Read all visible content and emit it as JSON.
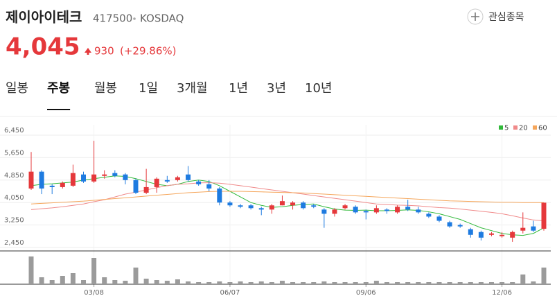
{
  "header": {
    "title": "제이아이테크",
    "code": "417500",
    "market": "KOSDAQ",
    "price": "4,045",
    "change": "930",
    "change_pct": "(+29.86%)",
    "watch_button": "관심종목"
  },
  "tabs": {
    "items": [
      "일봉",
      "주봉",
      "월봉",
      "1일",
      "3개월",
      "1년",
      "3년",
      "10년"
    ],
    "active": 1
  },
  "chart_data": {
    "type": "candlestick",
    "categories": [
      null,
      null,
      null,
      null,
      null,
      null,
      "03/08",
      null,
      null,
      null,
      null,
      null,
      null,
      null,
      null,
      null,
      null,
      null,
      null,
      "06/07",
      null,
      null,
      null,
      null,
      null,
      null,
      null,
      null,
      null,
      null,
      null,
      null,
      "09/06",
      null,
      null,
      null,
      null,
      null,
      null,
      null,
      null,
      null,
      null,
      null,
      null,
      "12/06",
      null,
      null,
      null,
      null
    ],
    "open": [
      4550,
      5150,
      4650,
      4600,
      4650,
      5050,
      4800,
      5000,
      5100,
      5050,
      4850,
      4400,
      4600,
      4850,
      4850,
      5050,
      4800,
      4700,
      4550,
      4050,
      3950,
      3950,
      3850,
      3800,
      3950,
      3950,
      4050,
      3950,
      3800,
      3650,
      3850,
      3900,
      3750,
      3700,
      3800,
      3700,
      3900,
      3800,
      3650,
      3550,
      3350,
      3250,
      3100,
      3000,
      2900,
      2850,
      2800,
      3050,
      3200,
      3115
    ],
    "high": [
      5850,
      5200,
      4700,
      4800,
      5400,
      5150,
      6250,
      5200,
      5200,
      5100,
      4900,
      5250,
      4950,
      5000,
      5000,
      5350,
      4850,
      4850,
      4600,
      4100,
      4000,
      4000,
      3900,
      4000,
      4300,
      4100,
      4100,
      4000,
      3850,
      3850,
      4000,
      3950,
      3800,
      3950,
      3850,
      3950,
      4150,
      3900,
      3700,
      3600,
      3400,
      3300,
      3150,
      3050,
      3000,
      3000,
      3050,
      3700,
      3400,
      4045
    ],
    "low": [
      4500,
      4350,
      4350,
      4550,
      4600,
      4750,
      4750,
      4900,
      4950,
      4700,
      4350,
      4350,
      4400,
      4750,
      4800,
      4800,
      4650,
      4450,
      3950,
      3900,
      3850,
      3800,
      3600,
      3650,
      3950,
      3800,
      3800,
      3850,
      3150,
      3550,
      3800,
      3650,
      3450,
      3650,
      3650,
      3650,
      3750,
      3650,
      3500,
      3350,
      3150,
      3150,
      2800,
      2700,
      2850,
      2800,
      2650,
      2950,
      3000,
      3050
    ],
    "close": [
      5150,
      4550,
      4600,
      4750,
      5100,
      4800,
      5050,
      5050,
      5000,
      4850,
      4400,
      4600,
      4900,
      4800,
      4950,
      4850,
      4700,
      4550,
      4050,
      3950,
      3900,
      3850,
      3800,
      3950,
      4100,
      4050,
      3850,
      3900,
      3650,
      3800,
      3950,
      3700,
      3700,
      3850,
      3750,
      3900,
      3800,
      3700,
      3550,
      3400,
      3200,
      3200,
      2900,
      2800,
      2950,
      2900,
      3000,
      3150,
      3050,
      4045
    ],
    "up_color": "#e5383b",
    "down_color": "#1e7be0",
    "series": [
      {
        "name": "5",
        "color": "#31b93a",
        "values": [
          4650,
          4700,
          4720,
          4750,
          4780,
          4850,
          4900,
          4950,
          5000,
          4980,
          4900,
          4800,
          4700,
          4650,
          4700,
          4800,
          4850,
          4800,
          4650,
          4450,
          4250,
          4050,
          3950,
          3880,
          3900,
          3950,
          3980,
          4000,
          3900,
          3820,
          3780,
          3770,
          3780,
          3760,
          3760,
          3770,
          3790,
          3770,
          3720,
          3650,
          3550,
          3450,
          3300,
          3150,
          3050,
          2950,
          2900,
          2880,
          2950,
          3150
        ]
      },
      {
        "name": "20",
        "color": "#f08a8a",
        "values": [
          3800,
          3830,
          3860,
          3900,
          3950,
          4000,
          4080,
          4150,
          4250,
          4350,
          4420,
          4500,
          4580,
          4650,
          4700,
          4720,
          4750,
          4760,
          4740,
          4700,
          4650,
          4600,
          4550,
          4500,
          4450,
          4400,
          4350,
          4300,
          4250,
          4200,
          4150,
          4100,
          4050,
          4000,
          3980,
          3960,
          3950,
          3930,
          3900,
          3870,
          3850,
          3820,
          3780,
          3740,
          3700,
          3650,
          3580,
          3500,
          3430,
          3400
        ]
      },
      {
        "name": "60",
        "color": "#f5a65b",
        "values": [
          4000,
          4020,
          4040,
          4060,
          4080,
          4100,
          4130,
          4160,
          4190,
          4220,
          4250,
          4280,
          4310,
          4340,
          4370,
          4400,
          4420,
          4440,
          4450,
          4450,
          4450,
          4440,
          4430,
          4420,
          4410,
          4400,
          4390,
          4370,
          4350,
          4330,
          4310,
          4290,
          4270,
          4250,
          4230,
          4210,
          4190,
          4170,
          4150,
          4130,
          4110,
          4100,
          4090,
          4080,
          4070,
          4060,
          4060,
          4050,
          4050,
          4050
        ]
      }
    ],
    "volume": [
      40,
      10,
      6,
      12,
      16,
      6,
      38,
      10,
      6,
      5,
      24,
      8,
      6,
      5,
      7,
      4,
      3,
      3,
      4,
      3,
      4,
      3,
      4,
      3,
      5,
      3,
      3,
      3,
      4,
      3,
      3,
      3,
      3,
      5,
      3,
      3,
      3,
      3,
      3,
      3,
      3,
      3,
      3,
      3,
      3,
      3,
      3,
      14,
      4,
      24
    ],
    "volume_color": "#9b9b9b",
    "volume_ylim": [
      0,
      42
    ],
    "ylim": [
      2450,
      6450
    ],
    "yticks": [
      {
        "value": 2450,
        "label": "2,450"
      },
      {
        "value": 3250,
        "label": "3,250"
      },
      {
        "value": 4050,
        "label": "4,050"
      },
      {
        "value": 4850,
        "label": "4,850"
      },
      {
        "value": 5650,
        "label": "5,650"
      },
      {
        "value": 6450,
        "label": "6,450"
      }
    ],
    "grid": true
  }
}
